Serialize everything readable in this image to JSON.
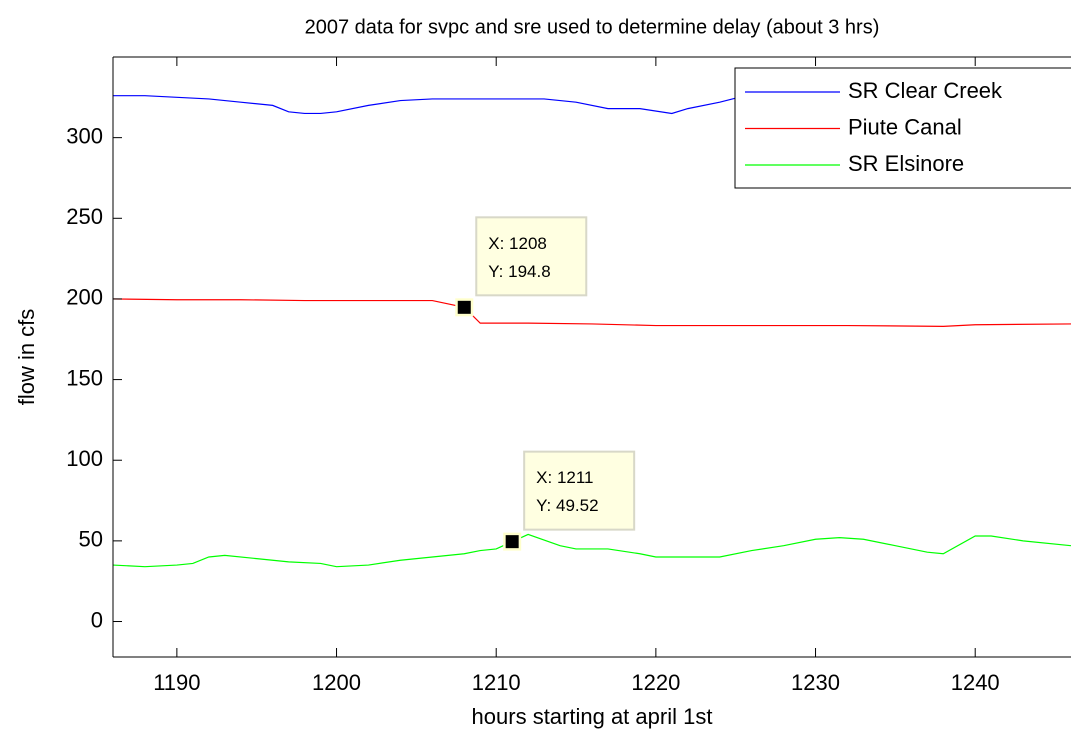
{
  "chart_data": {
    "type": "line",
    "title": "2007 data for svpc and sre used to determine delay (about 3 hrs)",
    "x_label": "hours starting at april 1st",
    "y_label": "flow in cfs",
    "xlim": [
      1186,
      1246
    ],
    "ylim": [
      -22,
      350
    ],
    "xticks": [
      1190,
      1200,
      1210,
      1220,
      1230,
      1240
    ],
    "yticks": [
      0,
      50,
      100,
      150,
      200,
      250,
      300
    ],
    "legend": "upper right",
    "series": [
      {
        "name": "SR Clear Creek",
        "color": "#0000ff",
        "x": [
          1186,
          1188,
          1190,
          1192,
          1194,
          1196,
          1197,
          1198,
          1199,
          1200,
          1202,
          1204,
          1206,
          1210,
          1213,
          1215,
          1217,
          1219,
          1221,
          1222,
          1224,
          1226,
          1228,
          1232,
          1236,
          1240,
          1244,
          1246
        ],
        "values": [
          326,
          326,
          325,
          324,
          322,
          320,
          316,
          315,
          315,
          316,
          320,
          323,
          324,
          324,
          324,
          322,
          318,
          318,
          315,
          318,
          322,
          327,
          330,
          328,
          325,
          320,
          315,
          311
        ]
      },
      {
        "name": "Piute Canal",
        "color": "#ff0000",
        "x": [
          1186,
          1190,
          1194,
          1198,
          1202,
          1206,
          1208,
          1209,
          1212,
          1216,
          1220,
          1226,
          1232,
          1238,
          1240,
          1246
        ],
        "values": [
          200,
          199.5,
          199.5,
          199,
          199,
          199,
          194.8,
          185,
          185,
          184.5,
          183.5,
          183.5,
          183.5,
          183,
          184,
          184.5
        ]
      },
      {
        "name": "SR Elsinore",
        "color": "#00ff00",
        "x": [
          1186,
          1188,
          1190,
          1191,
          1192,
          1193,
          1195,
          1197,
          1199,
          1200,
          1202,
          1204,
          1206,
          1207,
          1208,
          1209,
          1210,
          1211,
          1212,
          1214,
          1215,
          1217,
          1219,
          1220,
          1222,
          1224,
          1226,
          1228,
          1230,
          1231.5,
          1233,
          1235,
          1237,
          1238,
          1240,
          1241,
          1243,
          1246
        ],
        "values": [
          35,
          34,
          35,
          36,
          40,
          41,
          39,
          37,
          36,
          34,
          35,
          38,
          40,
          41,
          42,
          44,
          45,
          49.52,
          54,
          47,
          45,
          45,
          42,
          40,
          40,
          40,
          44,
          47,
          51,
          52,
          51,
          47,
          43,
          42,
          53,
          53,
          50,
          47
        ]
      }
    ],
    "annotations": [
      {
        "x": 1208,
        "y": 194.8,
        "text_x": "X: 1208",
        "text_y": "Y: 194.8"
      },
      {
        "x": 1211,
        "y": 49.52,
        "text_x": "X: 1211",
        "text_y": "Y: 49.52"
      }
    ]
  }
}
